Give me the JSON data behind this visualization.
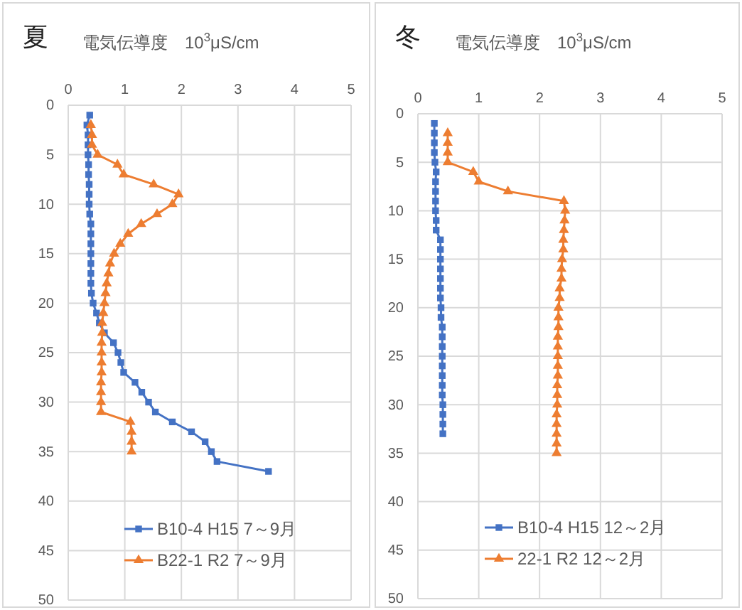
{
  "chart_data": [
    {
      "type": "line",
      "title": "夏",
      "xlabel": "電気伝導度　10$^{3}$μS/cm",
      "xlim": [
        0,
        5
      ],
      "xticks": [
        0,
        1,
        2,
        3,
        4,
        5
      ],
      "ylim": [
        50,
        0
      ],
      "yticks": [
        0,
        5,
        10,
        15,
        20,
        25,
        30,
        35,
        40,
        45,
        50
      ],
      "grid": true,
      "legend": "bottom",
      "line_style": "solid",
      "series": [
        {
          "name": "B10-4 H15 7～9月",
          "color": "#4472c4",
          "marker": "square",
          "x": [
            0.38,
            0.33,
            0.35,
            0.35,
            0.35,
            0.36,
            0.36,
            0.37,
            0.37,
            0.37,
            0.38,
            0.4,
            0.4,
            0.4,
            0.4,
            0.4,
            0.4,
            0.4,
            0.41,
            0.44,
            0.5,
            0.55,
            0.64,
            0.8,
            0.88,
            0.93,
            0.98,
            1.18,
            1.3,
            1.42,
            1.54,
            1.84,
            2.18,
            2.42,
            2.53,
            2.63,
            3.54
          ],
          "values": [
            1,
            2,
            3,
            4,
            5,
            6,
            7,
            8,
            9,
            10,
            11,
            12,
            13,
            14,
            15,
            16,
            17,
            18,
            19,
            20,
            21,
            22,
            23,
            24,
            25,
            26,
            27,
            28,
            29,
            30,
            31,
            32,
            33,
            34,
            35,
            36,
            37
          ]
        },
        {
          "name": "B22-1 R2 7～9月",
          "color": "#ed7d31",
          "marker": "triangle",
          "x": [
            0.4,
            0.42,
            0.42,
            0.52,
            0.87,
            0.98,
            1.51,
            1.95,
            1.84,
            1.57,
            1.29,
            1.06,
            0.92,
            0.81,
            0.74,
            0.71,
            0.68,
            0.66,
            0.64,
            0.62,
            0.6,
            0.6,
            0.59,
            0.59,
            0.59,
            0.59,
            0.58,
            0.58,
            0.58,
            0.58,
            1.1,
            1.12,
            1.12,
            1.12
          ],
          "values": [
            2,
            3,
            4,
            5,
            6,
            7,
            8,
            9,
            10,
            11,
            12,
            13,
            14,
            15,
            16,
            17,
            18,
            19,
            20,
            21,
            22,
            23,
            24,
            25,
            26,
            27,
            28,
            29,
            30,
            31,
            32,
            33,
            34,
            35
          ]
        }
      ]
    },
    {
      "type": "line",
      "title": "冬",
      "xlabel": "電気伝導度　10$^{3}$μS/cm",
      "xlim": [
        0,
        5
      ],
      "xticks": [
        0,
        1,
        2,
        3,
        4,
        5
      ],
      "ylim": [
        50,
        0
      ],
      "yticks": [
        0,
        5,
        10,
        15,
        20,
        25,
        30,
        35,
        40,
        45,
        50
      ],
      "grid": true,
      "legend": "bottom",
      "line_style": "solid",
      "series": [
        {
          "name": "B10-4 H15 12～2月",
          "color": "#4472c4",
          "marker": "square",
          "x": [
            0.27,
            0.27,
            0.27,
            0.27,
            0.28,
            0.3,
            0.29,
            0.29,
            0.29,
            0.29,
            0.3,
            0.3,
            0.37,
            0.37,
            0.37,
            0.37,
            0.37,
            0.37,
            0.37,
            0.38,
            0.38,
            0.4,
            0.4,
            0.4,
            0.4,
            0.4,
            0.4,
            0.4,
            0.4,
            0.41,
            0.41,
            0.41,
            0.41
          ],
          "values": [
            1,
            2,
            3,
            4,
            5,
            6,
            7,
            8,
            9,
            10,
            11,
            12,
            13,
            14,
            15,
            16,
            17,
            18,
            19,
            20,
            21,
            22,
            23,
            24,
            25,
            26,
            27,
            28,
            29,
            30,
            31,
            32,
            33
          ]
        },
        {
          "name": "22-1 R2 12～2月",
          "color": "#ed7d31",
          "marker": "triangle",
          "x": [
            0.49,
            0.49,
            0.49,
            0.49,
            0.91,
            1.0,
            1.48,
            2.4,
            2.42,
            2.41,
            2.4,
            2.39,
            2.39,
            2.37,
            2.36,
            2.36,
            2.33,
            2.33,
            2.31,
            2.31,
            2.31,
            2.3,
            2.3,
            2.3,
            2.3,
            2.3,
            2.29,
            2.29,
            2.29,
            2.28,
            2.28,
            2.28,
            2.28,
            2.28
          ],
          "values": [
            2,
            3,
            4,
            5,
            6,
            7,
            8,
            9,
            10,
            11,
            12,
            13,
            14,
            15,
            16,
            17,
            18,
            19,
            20,
            21,
            22,
            23,
            24,
            25,
            26,
            27,
            28,
            29,
            30,
            31,
            32,
            33,
            34,
            35
          ]
        }
      ]
    }
  ]
}
